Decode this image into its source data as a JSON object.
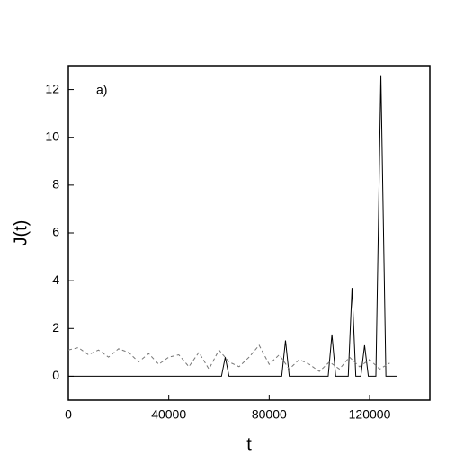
{
  "chart_data": {
    "type": "line",
    "annotation": "a)",
    "xlabel": "t",
    "ylabel": "J(t)",
    "xlim": [
      0,
      144000
    ],
    "ylim": [
      -1,
      13
    ],
    "xticks": [
      0,
      40000,
      80000,
      120000
    ],
    "yticks": [
      0,
      2,
      4,
      6,
      8,
      10,
      12
    ],
    "series": [
      {
        "color": "#000000",
        "dash": false,
        "x": [
          0,
          61000,
          62500,
          64000,
          85000,
          86500,
          88000,
          103500,
          105000,
          106500,
          111500,
          113000,
          114500,
          116500,
          118000,
          119500,
          122500,
          124500,
          126500,
          131000
        ],
        "values": [
          0,
          0,
          0.8,
          0,
          0,
          1.5,
          0,
          0,
          1.75,
          0,
          0,
          3.7,
          0,
          0,
          1.3,
          0,
          0,
          12.6,
          0,
          0
        ]
      },
      {
        "color": "#777777",
        "dash": true,
        "x": [
          0,
          4000,
          8000,
          12000,
          16000,
          20000,
          24000,
          28000,
          32000,
          36000,
          40000,
          44000,
          48000,
          52000,
          56000,
          60000,
          64000,
          68000,
          72000,
          76000,
          80000,
          84000,
          88000,
          92000,
          96000,
          100000,
          104000,
          108000,
          112000,
          116000,
          120000,
          124000,
          128000
        ],
        "values": [
          1.1,
          1.2,
          0.9,
          1.1,
          0.8,
          1.15,
          1.0,
          0.6,
          0.95,
          0.5,
          0.8,
          0.9,
          0.4,
          1.0,
          0.3,
          1.1,
          0.6,
          0.4,
          0.8,
          1.3,
          0.5,
          0.9,
          0.3,
          0.7,
          0.5,
          0.2,
          0.6,
          0.3,
          0.8,
          0.4,
          0.7,
          0.3,
          0.55
        ]
      }
    ]
  }
}
